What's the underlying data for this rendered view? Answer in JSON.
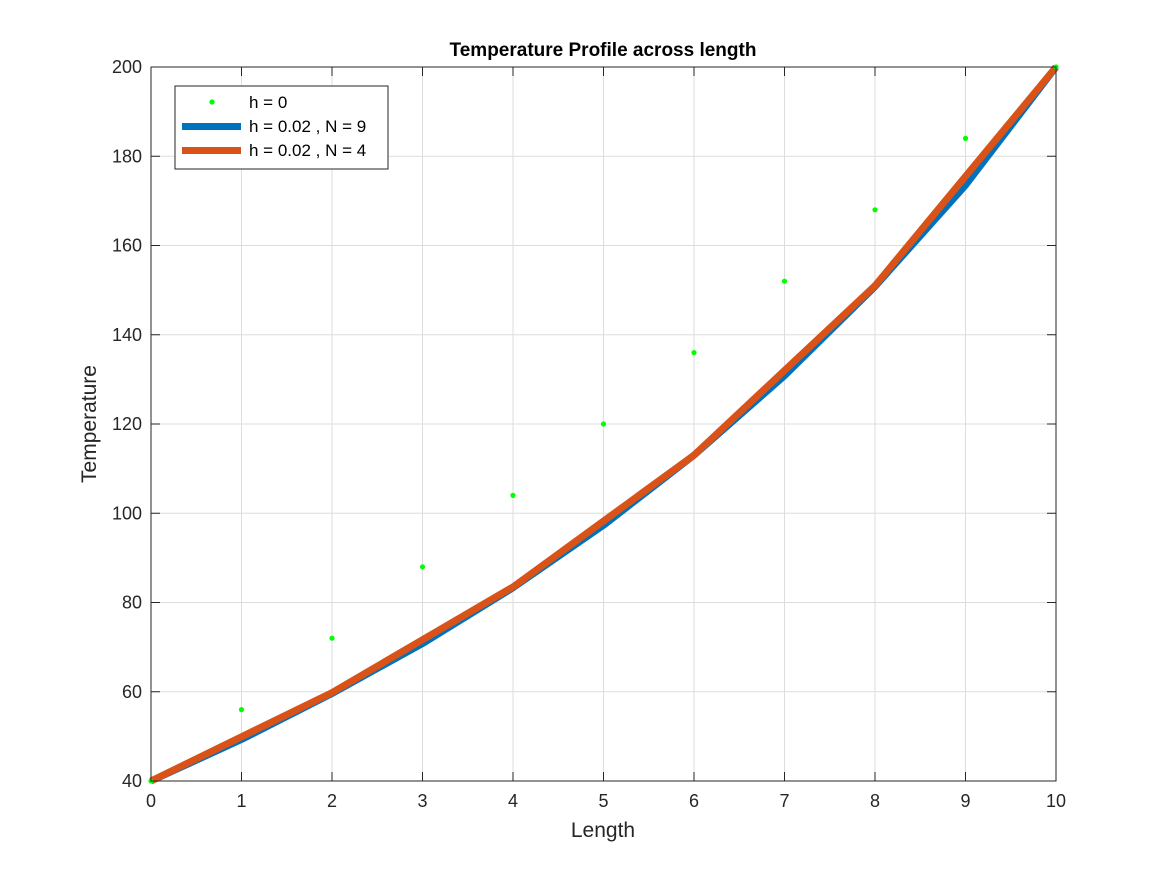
{
  "chart_data": {
    "type": "line",
    "title": "Temperature Profile across length",
    "xlabel": "Length",
    "ylabel": "Temperature",
    "xlim": [
      0,
      10
    ],
    "ylim": [
      40,
      200
    ],
    "xticks": [
      0,
      1,
      2,
      3,
      4,
      5,
      6,
      7,
      8,
      9,
      10
    ],
    "yticks": [
      40,
      60,
      80,
      100,
      120,
      140,
      160,
      180,
      200
    ],
    "grid": true,
    "legend_position": "top-left",
    "series": [
      {
        "name": "h = 0",
        "style": "markers",
        "color": "#00ff00",
        "x": [
          0,
          1,
          2,
          3,
          4,
          5,
          6,
          7,
          8,
          9,
          10
        ],
        "y": [
          40,
          56,
          72,
          88,
          104,
          120,
          136,
          152,
          168,
          184,
          200
        ]
      },
      {
        "name": "h = 0.02 , N = 9",
        "style": "line",
        "color": "#0072bd",
        "x": [
          0,
          1,
          2,
          3,
          4,
          5,
          6,
          7,
          8,
          9,
          10
        ],
        "y": [
          40,
          49.3,
          59.6,
          70.8,
          83.3,
          97.3,
          113,
          130.8,
          150.8,
          173.5,
          200
        ]
      },
      {
        "name": "h = 0.02 , N = 4",
        "style": "line",
        "color": "#d95319",
        "x": [
          0,
          2,
          4,
          6,
          8,
          10
        ],
        "y": [
          40,
          59.8,
          83.5,
          113,
          151,
          200
        ]
      }
    ]
  }
}
